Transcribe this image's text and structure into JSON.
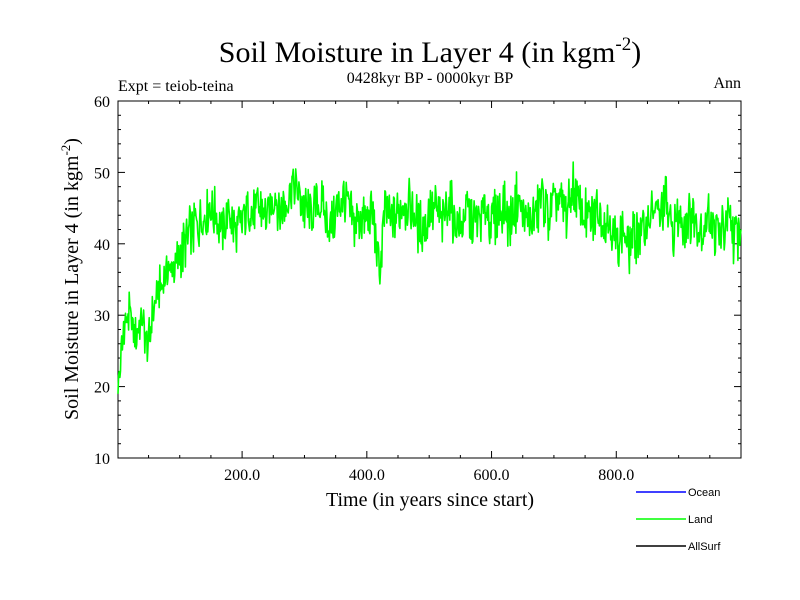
{
  "chart_data": {
    "type": "line",
    "title": "Soil Moisture in Layer 4 (in kgm",
    "title_sup": "-2",
    "title_close": ")",
    "subtitle": "0428kyr BP - 0000kyr BP",
    "expt_label": "Expt = teiob-teina",
    "season_label": "Ann",
    "xlabel": "Time (in years since start)",
    "ylabel": "Soil Moisture in Layer 4 (in kgm",
    "ylabel_sup": "-2",
    "ylabel_close": ")",
    "xlim": [
      1,
      1000
    ],
    "ylim": [
      10,
      60
    ],
    "x_ticks": [
      200,
      400,
      600,
      800
    ],
    "x_tick_labels": [
      "200.0",
      "400.0",
      "600.0",
      "800.0"
    ],
    "y_ticks": [
      10,
      20,
      30,
      40,
      50,
      60
    ],
    "y_tick_labels": [
      "10",
      "20",
      "30",
      "40",
      "50",
      "60"
    ],
    "grid": false,
    "legend_position": "bottom-right",
    "series": [
      {
        "name": "Ocean",
        "color": "#0000ff",
        "x": [],
        "values": []
      },
      {
        "name": "Land",
        "color": "#00ff00",
        "x": [
          1,
          10,
          20,
          30,
          40,
          50,
          60,
          70,
          80,
          90,
          100,
          110,
          120,
          130,
          140,
          150,
          160,
          170,
          180,
          190,
          200,
          210,
          220,
          230,
          240,
          250,
          260,
          270,
          280,
          290,
          300,
          310,
          320,
          330,
          340,
          350,
          360,
          370,
          380,
          390,
          400,
          410,
          420,
          430,
          440,
          450,
          460,
          470,
          480,
          490,
          500,
          510,
          520,
          530,
          540,
          550,
          560,
          570,
          580,
          590,
          600,
          610,
          620,
          630,
          640,
          650,
          660,
          670,
          680,
          690,
          700,
          710,
          720,
          730,
          740,
          750,
          760,
          770,
          780,
          790,
          800,
          810,
          820,
          830,
          840,
          850,
          860,
          870,
          880,
          890,
          900,
          910,
          920,
          930,
          940,
          950,
          960,
          970,
          980,
          990,
          1000
        ],
        "values": [
          20,
          28,
          30,
          27,
          29,
          26,
          32,
          34,
          36,
          37,
          38,
          40,
          42,
          43,
          44,
          45,
          44,
          42,
          45,
          41,
          43,
          46,
          44,
          45,
          43,
          47,
          45,
          46,
          48,
          47,
          45,
          44,
          46,
          45,
          43,
          44,
          47,
          45,
          42,
          44,
          43,
          44,
          36,
          45,
          43,
          44,
          46,
          45,
          43,
          42,
          44,
          45,
          43,
          46,
          44,
          42,
          45,
          43,
          44,
          45,
          43,
          44,
          45,
          43,
          46,
          44,
          43,
          44,
          46,
          44,
          45,
          46,
          44,
          48,
          45,
          44,
          43,
          45,
          44,
          43,
          40,
          42,
          39,
          41,
          42,
          43,
          45,
          44,
          46,
          42,
          44,
          43,
          44,
          43,
          42,
          44,
          41,
          42,
          43,
          41,
          42
        ]
      },
      {
        "name": "AllSurf",
        "color": "#000000",
        "x": [],
        "values": []
      }
    ]
  }
}
